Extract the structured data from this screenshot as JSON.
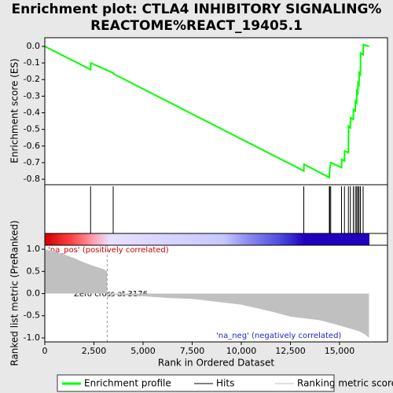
{
  "chart_data": [
    {
      "type": "line",
      "title": [
        "Enrichment plot: CTLA4 INHIBITORY SIGNALING%",
        "REACTOME%REACT_19405.1"
      ],
      "ylabel": "Enrichment score (ES)",
      "ylim": [
        -0.833,
        0.052
      ],
      "yticks": [
        {
          "value": 0,
          "label": "0.0"
        },
        {
          "value": -0.1,
          "label": "-0.1"
        },
        {
          "value": -0.2,
          "label": "-0.2"
        },
        {
          "value": -0.3,
          "label": "-0.3"
        },
        {
          "value": -0.4,
          "label": "-0.4"
        },
        {
          "value": -0.5,
          "label": "-0.5"
        },
        {
          "value": -0.6,
          "label": "-0.6"
        },
        {
          "value": -0.7,
          "label": "-0.7"
        },
        {
          "value": -0.8,
          "label": "-0.8"
        }
      ],
      "x": [
        0,
        2330,
        2340,
        3480,
        3490,
        13180,
        13190,
        14480,
        14500,
        14550,
        15100,
        15110,
        15250,
        15260,
        15450,
        15460,
        15550,
        15560,
        15700,
        15710,
        15800,
        15810,
        15870,
        15880,
        15930,
        15940,
        15990,
        16000,
        16060,
        16070,
        16200,
        16210,
        16500
      ],
      "series": [
        {
          "name": "Enrichment profile",
          "color": "#00ff00",
          "values": [
            0,
            -0.14,
            -0.1,
            -0.16,
            -0.165,
            -0.75,
            -0.71,
            -0.79,
            -0.74,
            -0.7,
            -0.73,
            -0.68,
            -0.69,
            -0.63,
            -0.64,
            -0.48,
            -0.49,
            -0.43,
            -0.44,
            -0.38,
            -0.39,
            -0.33,
            -0.34,
            -0.27,
            -0.28,
            -0.22,
            -0.23,
            -0.16,
            -0.17,
            -0.04,
            -0.05,
            0.01,
            0.0
          ]
        }
      ]
    },
    {
      "type": "hits",
      "series": [
        {
          "name": "Hits",
          "color": "#000000",
          "x": [
            2330,
            3480,
            13180,
            14480,
            14500,
            14550,
            15100,
            15250,
            15450,
            15550,
            15700,
            15800,
            15870,
            15930,
            15990,
            16060,
            16200
          ]
        }
      ]
    },
    {
      "type": "area",
      "xlabel": "Rank in Ordered Dataset",
      "ylabel": "Ranked list metric (PreRanked)",
      "xlim": [
        0,
        17440
      ],
      "xticks": [
        0,
        {
          "value": 2500,
          "label": "2,500"
        },
        {
          "value": 5000,
          "label": "5,000"
        },
        {
          "value": 7500,
          "label": "7,500"
        },
        {
          "value": 10000,
          "label": "10,000"
        },
        {
          "value": 12500,
          "label": "12,500"
        },
        {
          "value": 15000,
          "label": "15,000"
        }
      ],
      "ylim": [
        -1.09,
        1.09
      ],
      "yticks": [
        {
          "value": 1,
          "label": "1.0"
        },
        {
          "value": 0.5,
          "label": "0.5"
        },
        {
          "value": 0,
          "label": "0.0"
        },
        {
          "value": -0.5,
          "label": "-0.5"
        },
        {
          "value": -1,
          "label": "-1.0"
        }
      ],
      "x": [
        0,
        500,
        1000,
        1500,
        2000,
        2500,
        3000,
        3170,
        3176,
        3200,
        5000,
        6300,
        7500,
        10000,
        11500,
        12500,
        14000,
        15000,
        16000,
        16300,
        16500
      ],
      "series": [
        {
          "name": "Ranking metric scores",
          "color": "#c0c0c0",
          "values": [
            1.0,
            0.95,
            0.88,
            0.8,
            0.7,
            0.62,
            0.55,
            0.5,
            0.0,
            -0.02,
            -0.06,
            -0.1,
            -0.12,
            -0.25,
            -0.4,
            -0.52,
            -0.6,
            -0.72,
            -0.85,
            -0.92,
            -1.0
          ]
        }
      ],
      "zero_cross": 3176,
      "annotations": [
        "'na_pos' (positively correlated)",
        "Zero cross at 3176",
        "'na_neg' (negatively correlated)"
      ]
    }
  ]
}
